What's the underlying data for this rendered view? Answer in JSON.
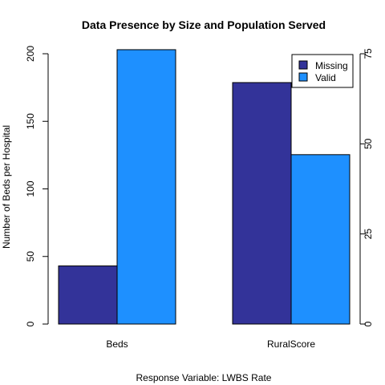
{
  "chart_data": {
    "type": "bar",
    "title": "Data Presence by Size and Population Served",
    "xlabel": "Response Variable: LWBS Rate",
    "ylabel_left": "Number of Beds per Hospital",
    "ylabel_right": "",
    "categories": [
      "Beds",
      "RuralScore"
    ],
    "series": [
      {
        "name": "Missing",
        "color": "#333399",
        "values": [
          43,
          67
        ]
      },
      {
        "name": "Valid",
        "color": "#1e90ff",
        "values": [
          203,
          47
        ]
      }
    ],
    "axes": {
      "left": {
        "ylim": [
          0,
          200
        ],
        "ticks": [
          0,
          50,
          100,
          150,
          200
        ],
        "applies_to": "Beds"
      },
      "right": {
        "ylim": [
          0,
          75
        ],
        "ticks": [
          0,
          25,
          50,
          75
        ],
        "applies_to": "RuralScore"
      }
    },
    "grid": false,
    "legend_position": "top-right"
  }
}
